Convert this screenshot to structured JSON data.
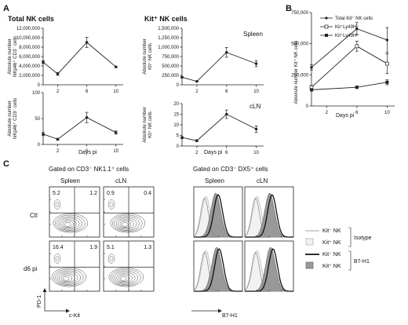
{
  "panelA": {
    "letter": "A",
    "col1_title": "Total NK cells",
    "col2_title": "Kit⁺ NK cells",
    "row1_label": "Spleen",
    "row2_label": "cLN",
    "x_label": "Days pi",
    "y_labels": {
      "total_spleen": [
        "Absolute number",
        "NKp46⁺ CD3⁻ cells"
      ],
      "kit_spleen": [
        "Absolute number",
        "Kit⁺ NK cells"
      ],
      "total_cln": [
        "Absolute number",
        "NKp46⁺ CD3⁻ cells"
      ],
      "kit_cln": [
        "Absolute number",
        "Kit⁺ NK cells"
      ]
    }
  },
  "panelB": {
    "letter": "B",
    "x_label": "Days pi",
    "y_label": "Absolute number Kit⁺ NK cells",
    "legend": [
      "Total Kit⁺ NK cells",
      "Kit⁺Ly49H⁻",
      "Kit⁺Ly49H⁺"
    ]
  },
  "panelC": {
    "letter": "C",
    "gate1": "Gated on CD3⁻ NK1.1⁺ cells",
    "gate2": "Gated on CD3⁻ DX5⁺ cells",
    "col_spleen": "Spleen",
    "col_cln": "cLN",
    "row_ctl": "Ctl",
    "row_d6": "d6 pi",
    "x_axis": "c-Kit",
    "y_axis": "PD-1",
    "hist_x": "B7-H1",
    "quadrants": {
      "ctl_spleen": [
        "5.2",
        "1.2"
      ],
      "ctl_cln": [
        "0.9",
        "0.4"
      ],
      "d6_spleen": [
        "16.4",
        "1.9"
      ],
      "d6_cln": [
        "5.1",
        "1.3"
      ]
    },
    "legend": {
      "kitneg": "Kit⁻ NK",
      "kitpos": "Kit⁺ NK",
      "isotype": "Isotype",
      "b7h1": "B7-H1"
    }
  },
  "chart_data": [
    {
      "type": "line",
      "id": "total_spleen",
      "x": [
        0,
        2,
        6,
        10
      ],
      "values": [
        4800000,
        2300000,
        9000000,
        3800000
      ],
      "err": [
        300000,
        300000,
        1100000,
        150000
      ],
      "ylim": [
        0,
        12000000
      ],
      "yticks": [
        "0",
        "2,000,000",
        "4,000,000",
        "6,000,000",
        "8,000,000",
        "10,000,000",
        "12,000,000"
      ],
      "xticks": [
        "2",
        "6",
        "10"
      ]
    },
    {
      "type": "line",
      "id": "kit_spleen",
      "x": [
        0,
        2,
        6,
        10
      ],
      "values": [
        200000,
        90000,
        860000,
        560000
      ],
      "err": [
        20000,
        10000,
        130000,
        80000
      ],
      "ylim": [
        0,
        1500000
      ],
      "yticks": [
        "0",
        "250,000",
        "500,000",
        "750,000",
        "1,000,000",
        "1,250,000",
        "1,500,000"
      ],
      "xticks": [
        "2",
        "6",
        "10"
      ]
    },
    {
      "type": "line",
      "id": "total_cln",
      "x": [
        0,
        2,
        6,
        10
      ],
      "values": [
        20,
        10,
        52,
        23
      ],
      "err": [
        3,
        2,
        10,
        3
      ],
      "ylim": [
        0,
        100
      ],
      "yticks": [
        "0",
        "50",
        "100"
      ],
      "xticks": [
        "2",
        "6",
        "10"
      ]
    },
    {
      "type": "line",
      "id": "kit_cln",
      "x": [
        0,
        2,
        6,
        10
      ],
      "values": [
        4,
        2.5,
        15,
        8
      ],
      "err": [
        0.5,
        0.5,
        2,
        1.5
      ],
      "ylim": [
        0,
        20
      ],
      "yticks": [
        "0",
        "5",
        "10",
        "15",
        "20"
      ],
      "xticks": [
        "2",
        "6",
        "10"
      ]
    },
    {
      "type": "line",
      "id": "panelB",
      "x": [
        0,
        6,
        10
      ],
      "ylim": [
        0,
        750000
      ],
      "yticks": [
        "0",
        "250,000",
        "500,000",
        "750,000"
      ],
      "xticks": [
        "2",
        "6",
        "10"
      ],
      "series": [
        {
          "name": "Total Kit⁺ NK cells",
          "values": [
            310000,
            620000,
            530000
          ],
          "err": [
            20000,
            50000,
            100000
          ]
        },
        {
          "name": "Kit⁺Ly49H⁻",
          "values": [
            150000,
            480000,
            340000
          ],
          "err": [
            15000,
            40000,
            80000
          ]
        },
        {
          "name": "Kit⁺Ly49H⁺",
          "values": [
            130000,
            150000,
            190000
          ],
          "err": [
            10000,
            10000,
            20000
          ]
        }
      ]
    }
  ]
}
